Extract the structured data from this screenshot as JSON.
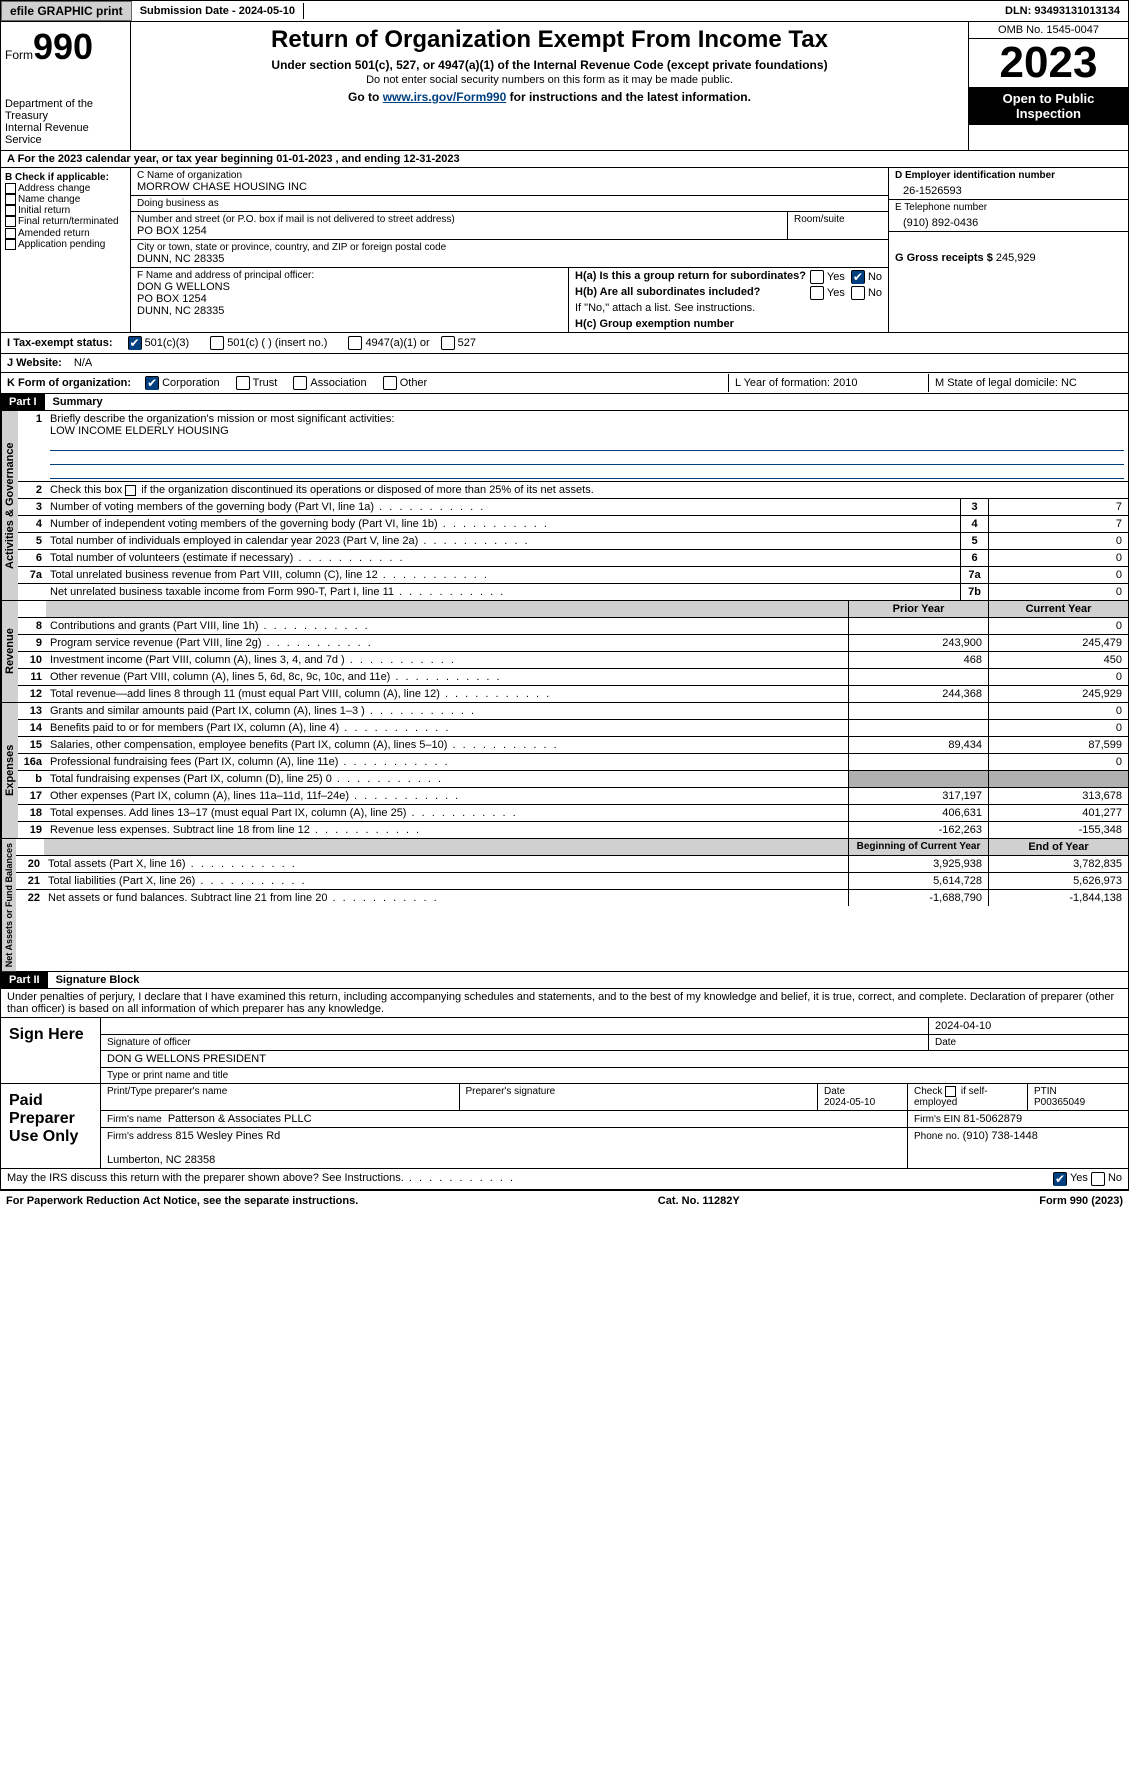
{
  "topbar": {
    "efile": "efile GRAPHIC print",
    "subdate_lbl": "Submission Date - 2024-05-10",
    "dln": "DLN: 93493131013134"
  },
  "header": {
    "form_word": "Form",
    "form_no": "990",
    "dept": "Department of the Treasury\nInternal Revenue Service",
    "title": "Return of Organization Exempt From Income Tax",
    "sub": "Under section 501(c), 527, or 4947(a)(1) of the Internal Revenue Code (except private foundations)",
    "sub2": "Do not enter social security numbers on this form as it may be made public.",
    "goto_pre": "Go to ",
    "goto_link": "www.irs.gov/Form990",
    "goto_post": " for instructions and the latest information.",
    "omb": "OMB No. 1545-0047",
    "year": "2023",
    "open": "Open to Public Inspection"
  },
  "rowA": "A For the 2023 calendar year, or tax year beginning 01-01-2023    , and ending 12-31-2023",
  "colB": {
    "header": "B Check if applicable:",
    "opts": [
      "Address change",
      "Name change",
      "Initial return",
      "Final return/terminated",
      "Amended return",
      "Application pending"
    ]
  },
  "colC": {
    "name_lbl": "C Name of organization",
    "name": "MORROW CHASE HOUSING INC",
    "dba_lbl": "Doing business as",
    "dba": "",
    "addr_lbl": "Number and street (or P.O. box if mail is not delivered to street address)",
    "room_lbl": "Room/suite",
    "addr": "PO BOX 1254",
    "city_lbl": "City or town, state or province, country, and ZIP or foreign postal code",
    "city": "DUNN, NC  28335",
    "officer_lbl": "F  Name and address of principal officer:",
    "officer": "DON G WELLONS\nPO BOX 1254\nDUNN, NC  28335"
  },
  "colD": {
    "ein_lbl": "D Employer identification number",
    "ein": "26-1526593",
    "tel_lbl": "E Telephone number",
    "tel": "(910) 892-0436",
    "gross_lbl": "G Gross receipts $",
    "gross": "245,929"
  },
  "rowH": {
    "ha": "H(a)  Is this a group return for subordinates?",
    "hb": "H(b)  Are all subordinates included?",
    "hb_note": "If \"No,\" attach a list. See instructions.",
    "hc": "H(c)  Group exemption number",
    "yes": "Yes",
    "no": "No"
  },
  "rowI": {
    "lbl": "I  Tax-exempt status:",
    "o1": "501(c)(3)",
    "o2": "501(c) (  ) (insert no.)",
    "o3": "4947(a)(1) or",
    "o4": "527"
  },
  "rowJ": {
    "lbl": "J  Website:",
    "val": "N/A"
  },
  "rowK": {
    "lbl": "K Form of organization:",
    "o1": "Corporation",
    "o2": "Trust",
    "o3": "Association",
    "o4": "Other",
    "L": "L Year of formation: 2010",
    "M": "M State of legal domicile: NC"
  },
  "part1": {
    "hd": "Part I",
    "title": "Summary"
  },
  "gov": {
    "tab": "Activities & Governance",
    "l1_lbl": "Briefly describe the organization's mission or most significant activities:",
    "l1_val": "LOW INCOME ELDERLY HOUSING",
    "l2": "Check this box      if the organization discontinued its operations or disposed of more than 25% of its net assets.",
    "rows": [
      {
        "n": "3",
        "d": "Number of voting members of the governing body (Part VI, line 1a)",
        "b": "3",
        "v": "7"
      },
      {
        "n": "4",
        "d": "Number of independent voting members of the governing body (Part VI, line 1b)",
        "b": "4",
        "v": "7"
      },
      {
        "n": "5",
        "d": "Total number of individuals employed in calendar year 2023 (Part V, line 2a)",
        "b": "5",
        "v": "0"
      },
      {
        "n": "6",
        "d": "Total number of volunteers (estimate if necessary)",
        "b": "6",
        "v": "0"
      },
      {
        "n": "7a",
        "d": "Total unrelated business revenue from Part VIII, column (C), line 12",
        "b": "7a",
        "v": "0"
      },
      {
        "n": "",
        "d": "Net unrelated business taxable income from Form 990-T, Part I, line 11",
        "b": "7b",
        "v": "0"
      }
    ]
  },
  "rev": {
    "tab": "Revenue",
    "hdr_prior": "Prior Year",
    "hdr_curr": "Current Year",
    "rows": [
      {
        "n": "8",
        "d": "Contributions and grants (Part VIII, line 1h)",
        "p": "",
        "c": "0"
      },
      {
        "n": "9",
        "d": "Program service revenue (Part VIII, line 2g)",
        "p": "243,900",
        "c": "245,479"
      },
      {
        "n": "10",
        "d": "Investment income (Part VIII, column (A), lines 3, 4, and 7d )",
        "p": "468",
        "c": "450"
      },
      {
        "n": "11",
        "d": "Other revenue (Part VIII, column (A), lines 5, 6d, 8c, 9c, 10c, and 11e)",
        "p": "",
        "c": "0"
      },
      {
        "n": "12",
        "d": "Total revenue—add lines 8 through 11 (must equal Part VIII, column (A), line 12)",
        "p": "244,368",
        "c": "245,929"
      }
    ]
  },
  "exp": {
    "tab": "Expenses",
    "rows": [
      {
        "n": "13",
        "d": "Grants and similar amounts paid (Part IX, column (A), lines 1–3 )",
        "p": "",
        "c": "0"
      },
      {
        "n": "14",
        "d": "Benefits paid to or for members (Part IX, column (A), line 4)",
        "p": "",
        "c": "0"
      },
      {
        "n": "15",
        "d": "Salaries, other compensation, employee benefits (Part IX, column (A), lines 5–10)",
        "p": "89,434",
        "c": "87,599"
      },
      {
        "n": "16a",
        "d": "Professional fundraising fees (Part IX, column (A), line 11e)",
        "p": "",
        "c": "0"
      },
      {
        "n": "b",
        "d": "Total fundraising expenses (Part IX, column (D), line 25) 0",
        "p": "GRAY",
        "c": "GRAY"
      },
      {
        "n": "17",
        "d": "Other expenses (Part IX, column (A), lines 11a–11d, 11f–24e)",
        "p": "317,197",
        "c": "313,678"
      },
      {
        "n": "18",
        "d": "Total expenses. Add lines 13–17 (must equal Part IX, column (A), line 25)",
        "p": "406,631",
        "c": "401,277"
      },
      {
        "n": "19",
        "d": "Revenue less expenses. Subtract line 18 from line 12",
        "p": "-162,263",
        "c": "-155,348"
      }
    ]
  },
  "net": {
    "tab": "Net Assets or Fund Balances",
    "hdr_beg": "Beginning of Current Year",
    "hdr_end": "End of Year",
    "rows": [
      {
        "n": "20",
        "d": "Total assets (Part X, line 16)",
        "p": "3,925,938",
        "c": "3,782,835"
      },
      {
        "n": "21",
        "d": "Total liabilities (Part X, line 26)",
        "p": "5,614,728",
        "c": "5,626,973"
      },
      {
        "n": "22",
        "d": "Net assets or fund balances. Subtract line 21 from line 20",
        "p": "-1,688,790",
        "c": "-1,844,138"
      }
    ]
  },
  "part2": {
    "hd": "Part II",
    "title": "Signature Block"
  },
  "perjury": "Under penalties of perjury, I declare that I have examined this return, including accompanying schedules and statements, and to the best of my knowledge and belief, it is true, correct, and complete. Declaration of preparer (other than officer) is based on all information of which preparer has any knowledge.",
  "sign": {
    "lbl": "Sign Here",
    "date": "2024-04-10",
    "sig_lbl": "Signature of officer",
    "date_lbl": "Date",
    "name": "DON G WELLONS  PRESIDENT",
    "name_lbl": "Type or print name and title"
  },
  "prep": {
    "lbl": "Paid Preparer Use Only",
    "h1": "Print/Type preparer's name",
    "h2": "Preparer's signature",
    "h3": "Date",
    "h3v": "2024-05-10",
    "h4": "Check       if self-employed",
    "h5": "PTIN",
    "h5v": "P00365049",
    "firm_lbl": "Firm's name",
    "firm": "Patterson & Associates PLLC",
    "fein_lbl": "Firm's EIN",
    "fein": "81-5062879",
    "addr_lbl": "Firm's address",
    "addr": "815 Wesley Pines Rd\n\nLumberton, NC  28358",
    "phone_lbl": "Phone no.",
    "phone": "(910) 738-1448"
  },
  "discuss": {
    "q": "May the IRS discuss this return with the preparer shown above? See Instructions.",
    "yes": "Yes",
    "no": "No"
  },
  "footer": {
    "pra": "For Paperwork Reduction Act Notice, see the separate instructions.",
    "cat": "Cat. No. 11282Y",
    "form": "Form 990 (2023)"
  }
}
